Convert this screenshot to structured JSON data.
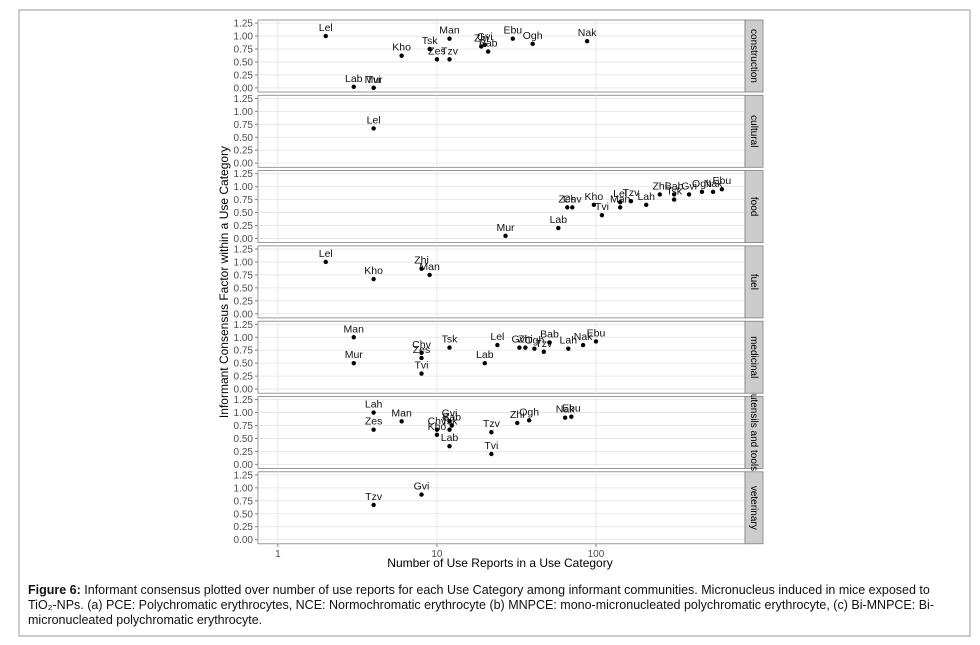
{
  "chart_data": {
    "type": "scatter",
    "xlabel": "Number of Use Reports in a Use Category",
    "ylabel": "Informant Consensus Factor within a Use Category",
    "log_x": true,
    "grid": true,
    "xlim": [
      0.75,
      865
    ],
    "xticks": [
      1,
      10,
      100
    ],
    "ylim": [
      -0.08,
      1.31
    ],
    "yticks": [
      {
        "value": 0,
        "label": "0.00"
      },
      {
        "value": 0.25,
        "label": "0.25"
      },
      {
        "value": 0.5,
        "label": "0.50"
      },
      {
        "value": 0.75,
        "label": "0.75"
      },
      {
        "value": 1,
        "label": "1.00"
      },
      {
        "value": 1.25,
        "label": "1.25"
      }
    ],
    "color": "#000000",
    "facets": [
      {
        "name": "construction",
        "labels": [
          "Lel",
          "Lab",
          "Mur",
          "Tvi",
          "Kho",
          "Tsk",
          "Man",
          "Zes",
          "Tzv",
          "Zhi",
          "Gvi",
          "Bab",
          "Ebu",
          "Ogh",
          "Nak"
        ],
        "x": [
          2,
          3,
          4,
          4,
          6,
          9,
          12,
          10,
          12,
          19,
          20,
          21,
          30,
          40,
          88
        ],
        "values": [
          1.0,
          0.02,
          0.0,
          0.0,
          0.62,
          0.75,
          0.95,
          0.55,
          0.55,
          0.8,
          0.83,
          0.7,
          0.95,
          0.85,
          0.9
        ]
      },
      {
        "name": "cultural",
        "labels": [
          "Lel"
        ],
        "x": [
          4
        ],
        "values": [
          0.67
        ]
      },
      {
        "name": "food",
        "labels": [
          "Mur",
          "Lab",
          "Zes",
          "Chv",
          "Kho",
          "Tvi",
          "Lel",
          "Man",
          "Tzv",
          "Lah",
          "Zhi",
          "Bab",
          "Tsk",
          "Gvi",
          "Ogh",
          "Nak",
          "Ebu"
        ],
        "x": [
          27,
          58,
          66,
          71,
          97,
          109,
          142,
          142,
          166,
          207,
          252,
          310,
          310,
          385,
          464,
          545,
          619
        ],
        "values": [
          0.05,
          0.2,
          0.6,
          0.6,
          0.65,
          0.45,
          0.7,
          0.6,
          0.72,
          0.65,
          0.85,
          0.85,
          0.75,
          0.85,
          0.9,
          0.9,
          0.95
        ]
      },
      {
        "name": "fuel",
        "labels": [
          "Lel",
          "Kho",
          "Zhi",
          "Man"
        ],
        "x": [
          2,
          4,
          8,
          9
        ],
        "values": [
          1.0,
          0.67,
          0.87,
          0.75
        ]
      },
      {
        "name": "medicinal",
        "labels": [
          "Man",
          "Mur",
          "Chv",
          "Zes",
          "Tvi",
          "Tsk",
          "Lab",
          "Lel",
          "Gvi",
          "Zhi",
          "Ogh",
          "Tzv",
          "Bab",
          "Lah",
          "Nak",
          "Ebu"
        ],
        "x": [
          3,
          3,
          8,
          8,
          8,
          12,
          20,
          24,
          33,
          36,
          41,
          47,
          51,
          67,
          83,
          100
        ],
        "values": [
          1.0,
          0.5,
          0.7,
          0.6,
          0.3,
          0.8,
          0.5,
          0.85,
          0.8,
          0.8,
          0.78,
          0.72,
          0.9,
          0.78,
          0.85,
          0.92
        ]
      },
      {
        "name": "utensils and tools",
        "labels": [
          "Lah",
          "Zes",
          "Man",
          "Chv",
          "Kho",
          "Gvi",
          "Tsk",
          "Bab",
          "Lab",
          "Tzv",
          "Tvi",
          "Zhi",
          "Ogh",
          "Nak",
          "Ebu"
        ],
        "x": [
          4,
          4,
          6,
          10,
          10,
          12,
          12,
          12.4,
          12,
          22,
          22,
          32,
          38,
          64,
          70
        ],
        "values": [
          1.0,
          0.67,
          0.83,
          0.67,
          0.57,
          0.83,
          0.67,
          0.75,
          0.35,
          0.62,
          0.2,
          0.8,
          0.85,
          0.9,
          0.92
        ]
      },
      {
        "name": "veterinary",
        "labels": [
          "Tzv",
          "Gvi"
        ],
        "x": [
          4,
          8
        ],
        "values": [
          0.67,
          0.87
        ]
      }
    ]
  },
  "caption": {
    "label": "Figure 6:",
    "text": "Informant consensus plotted over number of use reports for each Use Category among informant communities. Micronucleus induced in mice exposed to TiO₂-NPs. (a) PCE: Polychromatic erythrocytes, NCE: Normochromatic erythrocyte (b) MNPCE: mono-micronucleated polychromatic erythrocyte, (c) Bi-MNPCE: Bi- micronucleated polychromatic erythrocyte."
  }
}
